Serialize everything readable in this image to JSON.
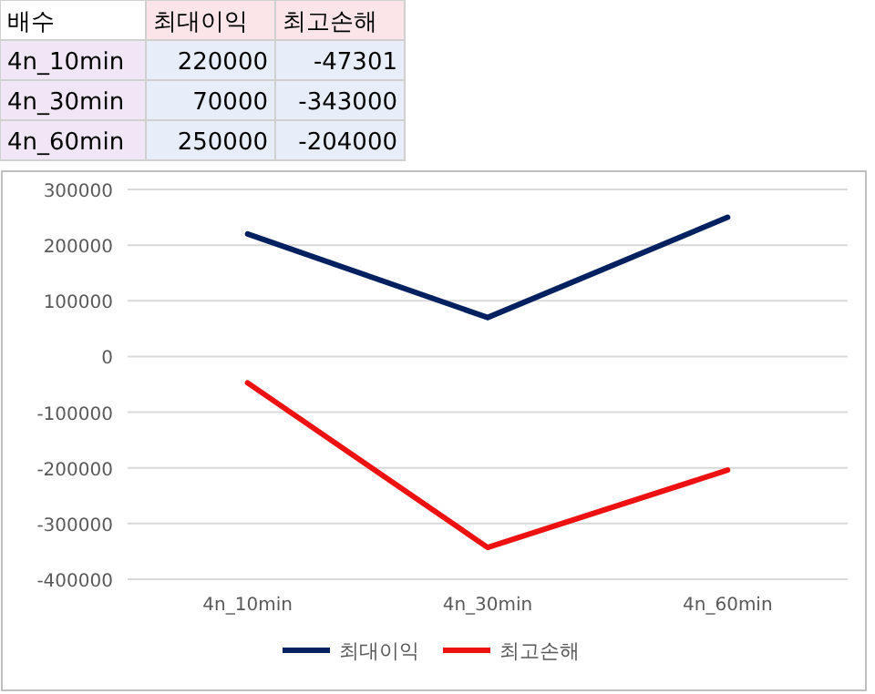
{
  "chart_data": {
    "type": "line",
    "annotations": [
      "배수",
      "220000",
      "-47301",
      "70000",
      "-343000",
      "250000",
      "-204000"
    ],
    "categories": [
      "4n_10min",
      "4n_30min",
      "4n_60min"
    ],
    "series": [
      {
        "name": "최대이익",
        "color": "#002060",
        "values": [
          220000,
          70000,
          250000
        ]
      },
      {
        "name": "최고손해",
        "color": "#ee1111",
        "values": [
          -47301,
          -343000,
          -204000
        ]
      }
    ],
    "ylim": [
      -400000,
      300000
    ],
    "yticks": [
      -400000,
      -300000,
      -200000,
      -100000,
      0,
      100000,
      200000,
      300000
    ],
    "grid": "y",
    "legend": "bottom",
    "marker": "none",
    "line_style": "solid"
  }
}
